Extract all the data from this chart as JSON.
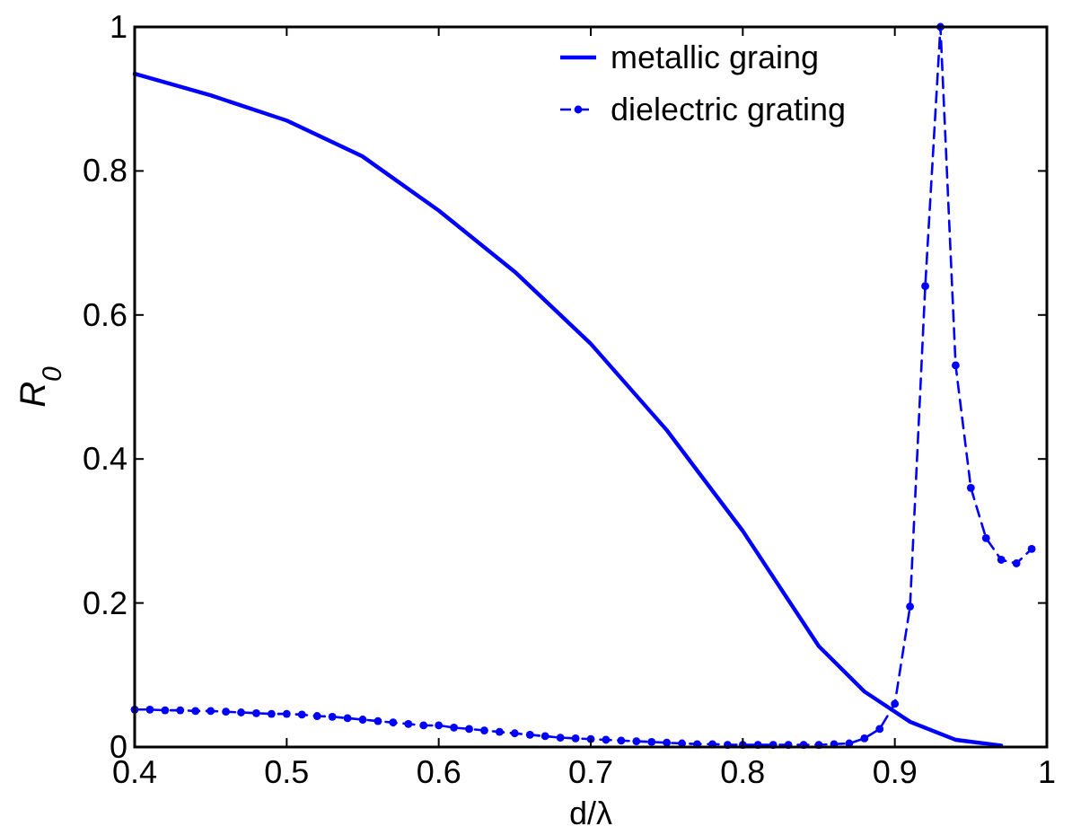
{
  "chart_data": {
    "type": "line",
    "xlabel": "d/λ",
    "ylabel": "R$_{0}$",
    "xlim": [
      0.4,
      1
    ],
    "ylim": [
      0,
      1
    ],
    "xticks": [
      0.4,
      0.5,
      0.6,
      0.7,
      0.8,
      0.9,
      1
    ],
    "yticks": [
      0,
      0.2,
      0.4,
      0.6,
      0.8,
      1
    ],
    "grid": false,
    "legend": "top right",
    "series": [
      {
        "name": "metallic graing",
        "color": "#0000ff",
        "line_style": "solid",
        "marker": "none",
        "x": [
          0.4,
          0.45,
          0.5,
          0.55,
          0.6,
          0.65,
          0.7,
          0.75,
          0.8,
          0.85,
          0.88,
          0.91,
          0.94,
          0.97
        ],
        "values": [
          0.935,
          0.905,
          0.87,
          0.82,
          0.745,
          0.66,
          0.56,
          0.44,
          0.3,
          0.14,
          0.077,
          0.035,
          0.01,
          0.002
        ]
      },
      {
        "name": "dielectric grating",
        "color": "#0000ff",
        "line_style": "dashed",
        "marker": "circle",
        "x": [
          0.4,
          0.41,
          0.42,
          0.43,
          0.44,
          0.45,
          0.46,
          0.47,
          0.48,
          0.49,
          0.5,
          0.51,
          0.52,
          0.53,
          0.54,
          0.55,
          0.56,
          0.57,
          0.58,
          0.59,
          0.6,
          0.61,
          0.62,
          0.63,
          0.64,
          0.65,
          0.66,
          0.67,
          0.68,
          0.69,
          0.7,
          0.71,
          0.72,
          0.73,
          0.74,
          0.75,
          0.76,
          0.77,
          0.78,
          0.79,
          0.8,
          0.81,
          0.82,
          0.83,
          0.84,
          0.85,
          0.86,
          0.87,
          0.88,
          0.89,
          0.9,
          0.91,
          0.92,
          0.93,
          0.94,
          0.95,
          0.96,
          0.97,
          0.98,
          0.99
        ],
        "values": [
          0.052,
          0.052,
          0.051,
          0.051,
          0.05,
          0.05,
          0.049,
          0.048,
          0.047,
          0.046,
          0.046,
          0.045,
          0.043,
          0.042,
          0.04,
          0.038,
          0.036,
          0.034,
          0.032,
          0.03,
          0.03,
          0.027,
          0.025,
          0.023,
          0.021,
          0.019,
          0.017,
          0.015,
          0.013,
          0.012,
          0.011,
          0.01,
          0.009,
          0.008,
          0.007,
          0.006,
          0.005,
          0.004,
          0.004,
          0.003,
          0.003,
          0.003,
          0.003,
          0.003,
          0.003,
          0.003,
          0.004,
          0.005,
          0.012,
          0.025,
          0.06,
          0.195,
          0.64,
          1,
          0.53,
          0.36,
          0.29,
          0.26,
          0.255,
          0.275
        ]
      }
    ]
  }
}
